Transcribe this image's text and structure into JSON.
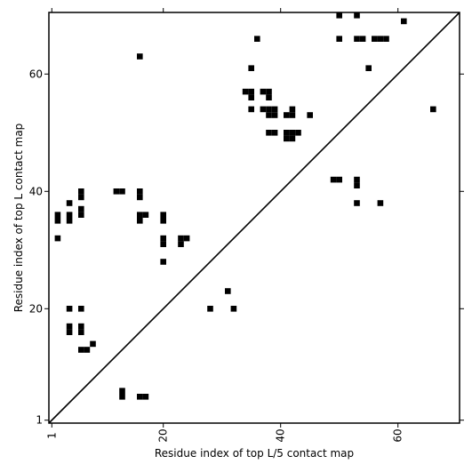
{
  "chart_data": {
    "type": "heatmap",
    "title": "",
    "xlabel": "Residue index of top L/5 contact map",
    "ylabel": "Residue index of top L contact map",
    "xlim": [
      0.5,
      70.5
    ],
    "ylim": [
      0.5,
      70.5
    ],
    "xticks": [
      1,
      20,
      40,
      60
    ],
    "yticks": [
      1,
      20,
      40,
      60
    ],
    "xtick_labels": [
      "1",
      "20",
      "40",
      "60"
    ],
    "ytick_labels": [
      "1",
      "20",
      "40",
      "60"
    ],
    "diagonal": true,
    "colors": {
      "contact": "#000000",
      "background": "#ffffff",
      "axis": "#000000"
    },
    "contacts": [
      [
        2,
        35
      ],
      [
        2,
        36
      ],
      [
        2,
        32
      ],
      [
        4,
        35
      ],
      [
        4,
        36
      ],
      [
        4,
        38
      ],
      [
        4,
        20
      ],
      [
        4,
        16
      ],
      [
        4,
        17
      ],
      [
        6,
        39
      ],
      [
        6,
        40
      ],
      [
        6,
        36
      ],
      [
        6,
        37
      ],
      [
        6,
        20
      ],
      [
        6,
        16
      ],
      [
        6,
        17
      ],
      [
        6,
        13
      ],
      [
        7,
        13
      ],
      [
        8,
        14
      ],
      [
        12,
        40
      ],
      [
        13,
        40
      ],
      [
        13,
        5
      ],
      [
        13,
        6
      ],
      [
        16,
        63
      ],
      [
        16,
        39
      ],
      [
        16,
        40
      ],
      [
        16,
        35
      ],
      [
        16,
        36
      ],
      [
        16,
        5
      ],
      [
        17,
        36
      ],
      [
        17,
        5
      ],
      [
        20,
        35
      ],
      [
        20,
        36
      ],
      [
        20,
        31
      ],
      [
        20,
        32
      ],
      [
        20,
        28
      ],
      [
        23,
        31
      ],
      [
        23,
        32
      ],
      [
        24,
        32
      ],
      [
        28,
        20
      ],
      [
        31,
        23
      ],
      [
        32,
        20
      ],
      [
        34,
        57
      ],
      [
        35,
        57
      ],
      [
        35,
        56
      ],
      [
        35,
        61
      ],
      [
        35,
        54
      ],
      [
        36,
        66
      ],
      [
        37,
        57
      ],
      [
        37,
        54
      ],
      [
        38,
        57
      ],
      [
        38,
        56
      ],
      [
        38,
        54
      ],
      [
        38,
        53
      ],
      [
        38,
        50
      ],
      [
        39,
        54
      ],
      [
        39,
        53
      ],
      [
        39,
        50
      ],
      [
        41,
        53
      ],
      [
        41,
        50
      ],
      [
        41,
        49
      ],
      [
        42,
        54
      ],
      [
        42,
        53
      ],
      [
        42,
        50
      ],
      [
        42,
        49
      ],
      [
        43,
        50
      ],
      [
        45,
        53
      ],
      [
        49,
        42
      ],
      [
        50,
        42
      ],
      [
        50,
        70
      ],
      [
        50,
        66
      ],
      [
        53,
        70
      ],
      [
        53,
        66
      ],
      [
        54,
        66
      ],
      [
        53,
        42
      ],
      [
        53,
        41
      ],
      [
        53,
        38
      ],
      [
        55,
        61
      ],
      [
        56,
        66
      ],
      [
        57,
        66
      ],
      [
        58,
        66
      ],
      [
        57,
        38
      ],
      [
        61,
        69
      ],
      [
        66,
        54
      ]
    ]
  }
}
